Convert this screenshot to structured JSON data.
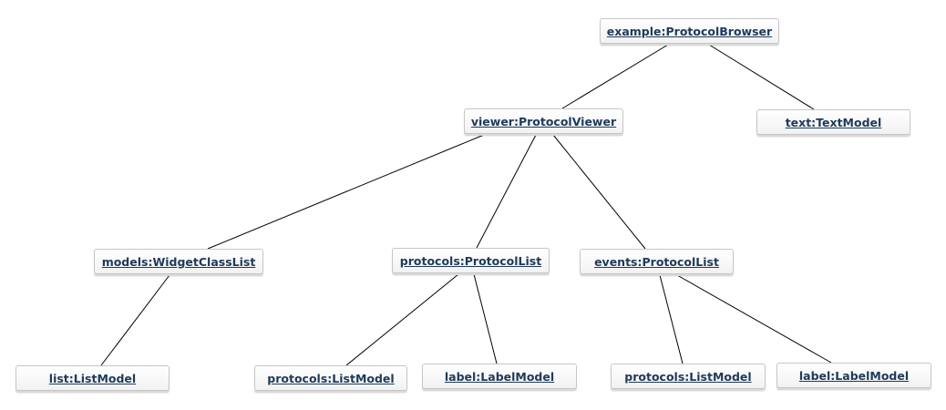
{
  "diagram": {
    "type": "uml-object-diagram",
    "nodes": {
      "example_protocol_browser": "example:ProtocolBrowser",
      "viewer_protocol_viewer": "viewer:ProtocolViewer",
      "text_text_model": "text:TextModel",
      "models_widget_class_list": "models:WidgetClassList",
      "protocols_protocol_list": "protocols:ProtocolList",
      "events_protocol_list": "events:ProtocolList",
      "list_list_model": "list:ListModel",
      "protocols_list_model_1": "protocols:ListModel",
      "label_label_model_1": "label:LabelModel",
      "protocols_list_model_2": "protocols:ListModel",
      "label_label_model_2": "label:LabelModel"
    },
    "links": [
      [
        "example_protocol_browser",
        "viewer_protocol_viewer"
      ],
      [
        "example_protocol_browser",
        "text_text_model"
      ],
      [
        "viewer_protocol_viewer",
        "models_widget_class_list"
      ],
      [
        "viewer_protocol_viewer",
        "protocols_protocol_list"
      ],
      [
        "viewer_protocol_viewer",
        "events_protocol_list"
      ],
      [
        "models_widget_class_list",
        "list_list_model"
      ],
      [
        "protocols_protocol_list",
        "protocols_list_model_1"
      ],
      [
        "protocols_protocol_list",
        "label_label_model_1"
      ],
      [
        "events_protocol_list",
        "protocols_list_model_2"
      ],
      [
        "events_protocol_list",
        "label_label_model_2"
      ]
    ],
    "colors": {
      "text": "#1e3a5a",
      "line": "#000000",
      "border": "#c6c6c6"
    }
  }
}
